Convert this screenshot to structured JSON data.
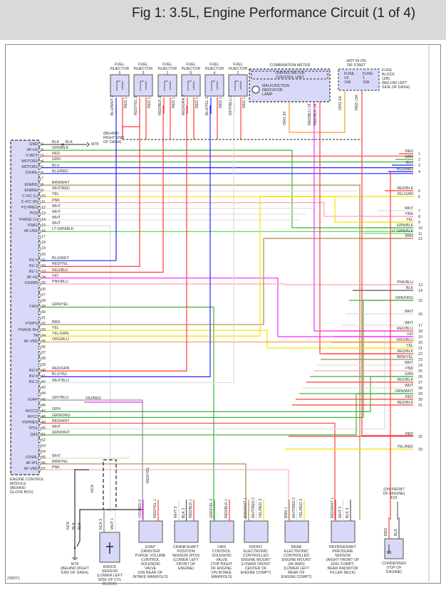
{
  "title": "Fig 1: 3.5L, Engine Performance Circuit (1 of 4)",
  "footer_id": "236071",
  "colors": {
    "RED": "#ff3b3b",
    "GRN": "#3cb43c",
    "BLU": "#2424ff",
    "BLK": "#555555",
    "BRN": "#a88a48",
    "WHT": "#dddddd",
    "YEL": "#f2e400",
    "PNK": "#ffa6b6",
    "VIO": "#ff26ff",
    "ORG": "#ff9a30",
    "GRY": "#8a8aa8",
    "LTGRN": "#5ee05e",
    "module_fill": "#d8d8f8"
  },
  "ecm": {
    "name": "ENGINE CONTROL\nMODULE\n(BEHIND\nGLOVE BOX)",
    "ground_note": "(BEHIND\nRIGHT END\nOF DASH)",
    "ground_ref": "M78",
    "ground_wire2": "BLK",
    "evap_splice_wire": "VIO/RED",
    "pins": [
      {
        "pin": "1",
        "signal": "GND",
        "wire": "BLK"
      },
      {
        "pin": "2",
        "signal": "AF-H1",
        "wire": "GRN/BLK"
      },
      {
        "pin": "3",
        "signal": "V MOT",
        "wire": "RED"
      },
      {
        "pin": "4",
        "signal": "MOTOR2",
        "wire": "GRN"
      },
      {
        "pin": "5",
        "signal": "MOTOR1",
        "wire": "BLU"
      },
      {
        "pin": "6",
        "signal": "O2HRL",
        "wire": "BLU/RED"
      },
      {
        "pin": "7",
        "signal": "",
        "wire": ""
      },
      {
        "pin": "8",
        "signal": "ENMN1",
        "wire": "BRN/WHT"
      },
      {
        "pin": "9",
        "signal": "ENMN2",
        "wire": "WHT/RED"
      },
      {
        "pin": "10",
        "signal": "C-IVC (L)",
        "wire": "YEL"
      },
      {
        "pin": "11",
        "signal": "C-IVC (R)",
        "wire": "PNK"
      },
      {
        "pin": "12",
        "signal": "PS PRES",
        "wire": "WHT"
      },
      {
        "pin": "13",
        "signal": "POS",
        "wire": "WHT"
      },
      {
        "pin": "14",
        "signal": "PHASE LH",
        "wire": "WHT"
      },
      {
        "pin": "15",
        "signal": "KNK1",
        "wire": "WHT"
      },
      {
        "pin": "16",
        "signal": "AF-UN1",
        "wire": "LT GRN/BLK"
      },
      {
        "pin": "17",
        "signal": "",
        "wire": ""
      },
      {
        "pin": "18",
        "signal": "",
        "wire": ""
      },
      {
        "pin": "19",
        "signal": "",
        "wire": ""
      },
      {
        "pin": "20",
        "signal": "",
        "wire": ""
      },
      {
        "pin": "21",
        "signal": "INJ 5",
        "wire": "BLU/WHT"
      },
      {
        "pin": "22",
        "signal": "INJ 3",
        "wire": "RED/YEL"
      },
      {
        "pin": "23",
        "signal": "INJ 1",
        "wire": "RED/BLK"
      },
      {
        "pin": "24",
        "signal": "AF-H2",
        "wire": "VIO"
      },
      {
        "pin": "25",
        "signal": "O2HRR",
        "wire": "PNK/BLU"
      },
      {
        "pin": "26",
        "signal": "",
        "wire": ""
      },
      {
        "pin": "27",
        "signal": "",
        "wire": ""
      },
      {
        "pin": "28",
        "signal": "",
        "wire": ""
      },
      {
        "pin": "29",
        "signal": "VIAS",
        "wire": "GRN/YEL"
      },
      {
        "pin": "30",
        "signal": "",
        "wire": ""
      },
      {
        "pin": "31",
        "signal": "",
        "wire": ""
      },
      {
        "pin": "32",
        "signal": "FTRPS",
        "wire": "BRN"
      },
      {
        "pin": "33",
        "signal": "PHASE RH",
        "wire": "YEL"
      },
      {
        "pin": "34",
        "signal": "TA",
        "wire": "YEL/GRN"
      },
      {
        "pin": "35",
        "signal": "AF-VM1",
        "wire": "ORG/BLU"
      },
      {
        "pin": "36",
        "signal": "",
        "wire": ""
      },
      {
        "pin": "37",
        "signal": "",
        "wire": ""
      },
      {
        "pin": "38",
        "signal": "",
        "wire": ""
      },
      {
        "pin": "39",
        "signal": "",
        "wire": ""
      },
      {
        "pin": "40",
        "signal": "INJ 6",
        "wire": "RED/GRN"
      },
      {
        "pin": "41",
        "signal": "INJ 4",
        "wire": "BLU/YEL"
      },
      {
        "pin": "42",
        "signal": "INJ 2",
        "wire": "WHT/BLU"
      },
      {
        "pin": "43",
        "signal": "",
        "wire": ""
      },
      {
        "pin": "44",
        "signal": "",
        "wire": ""
      },
      {
        "pin": "45",
        "signal": "EVAP",
        "wire": "GRY/BLU"
      },
      {
        "pin": "46",
        "signal": "",
        "wire": ""
      },
      {
        "pin": "47",
        "signal": "AVCC2",
        "wire": "GRN"
      },
      {
        "pin": "48",
        "signal": "AVCC",
        "wire": "GRN/ORG"
      },
      {
        "pin": "49",
        "signal": "PDPRES",
        "wire": "RED/WHT"
      },
      {
        "pin": "50",
        "signal": "TPS1",
        "wire": "WHT"
      },
      {
        "pin": "51",
        "signal": "QA1",
        "wire": "GRN/WHT"
      },
      {
        "pin": "52",
        "signal": "",
        "wire": ""
      },
      {
        "pin": "53",
        "signal": "",
        "wire": ""
      },
      {
        "pin": "54",
        "signal": "",
        "wire": ""
      },
      {
        "pin": "55",
        "signal": "O2SRL",
        "wire": "WHT"
      },
      {
        "pin": "56",
        "signal": "AF-IP1",
        "wire": "BRN/YEL"
      },
      {
        "pin": "57",
        "signal": "AF-VM2",
        "wire": "PNK"
      }
    ]
  },
  "right_connector": [
    {
      "pin": "1",
      "wire": "RED"
    },
    {
      "pin": "2",
      "wire": "GRN"
    },
    {
      "pin": "3",
      "wire": "BLU"
    },
    {
      "pin": "4",
      "wire": "BLU/RED"
    },
    {
      "pin": "5",
      "wire": "RED/BLK"
    },
    {
      "pin": "6",
      "wire": "YEL/GRN"
    },
    {
      "pin": "7",
      "wire": "WHT"
    },
    {
      "pin": "8",
      "wire": "PNK"
    },
    {
      "pin": "9",
      "wire": "YEL"
    },
    {
      "pin": "10",
      "wire": "GRN/BLK"
    },
    {
      "pin": "11",
      "wire": "LT GRN/BLK"
    },
    {
      "pin": "12",
      "wire": "BRN"
    },
    {
      "pin": "13",
      "wire": "PNK/BLU"
    },
    {
      "pin": "14",
      "wire": "BLK"
    },
    {
      "pin": "15",
      "wire": "GRN/ORG"
    },
    {
      "pin": "16",
      "wire": "WHT"
    },
    {
      "pin": "17",
      "wire": "WHT"
    },
    {
      "pin": "18",
      "wire": "RED/BLU"
    },
    {
      "pin": "19",
      "wire": "VIO"
    },
    {
      "pin": "20",
      "wire": "ORG/BLU"
    },
    {
      "pin": "21",
      "wire": "YEL"
    },
    {
      "pin": "22",
      "wire": "RED/BLK"
    },
    {
      "pin": "23",
      "wire": "BRN/YEL"
    },
    {
      "pin": "24",
      "wire": "WHT"
    },
    {
      "pin": "25",
      "wire": "PNK"
    },
    {
      "pin": "26",
      "wire": "GRN"
    },
    {
      "pin": "27",
      "wire": "RED/BLK"
    },
    {
      "pin": "28",
      "wire": "WHT"
    },
    {
      "pin": "29",
      "wire": "GRN/WHT"
    },
    {
      "pin": "30",
      "wire": "RED"
    },
    {
      "pin": "31",
      "wire": "RED/BLK"
    },
    {
      "pin": "32",
      "wire": "RED"
    },
    {
      "pin": "33",
      "wire": "YEL/RED"
    }
  ],
  "injectors": [
    {
      "label": "FUEL\nINJECTOR\n5",
      "wire_a": "BLU/WHT 2",
      "wire_b": "RED 1"
    },
    {
      "label": "FUEL\nINJECTOR\n3",
      "wire_a": "RED/YEL 2",
      "wire_b": "RED 1"
    },
    {
      "label": "FUEL\nINJECTOR\n1",
      "wire_a": "RED/BLK 2",
      "wire_b": "RED 1"
    },
    {
      "label": "FUEL\nINJECTOR\n6",
      "wire_a": "RED/GRN 2",
      "wire_b": "RED 1"
    },
    {
      "label": "FUEL\nINJECTOR\n4",
      "wire_a": "BLU/YEL 2",
      "wire_b": "RED 1"
    },
    {
      "label": "FUEL\nINJECTOR\n2",
      "wire_a": "WHT/BLU 2",
      "wire_b": "RED 1"
    }
  ],
  "combination_meter": {
    "title": "COMBINATION METER",
    "unit": "UNIFIED METER\nCONTROL UNIT",
    "lamp": "MALFUNCTION\nINDICATOR\nLAMP",
    "wires": [
      "ORG 20",
      "RED/BLU 18",
      "RED/BLK 19"
    ]
  },
  "fuse_block": {
    "hot_note": "HOT IN ON\nOR START",
    "fuse_a": "FUSE\n14\n10A",
    "fuse_b": "FUSE\n1\n10A",
    "label": "FUSE\nBLOCK\n(J/B)\n(BELOW LEFT\nSIDE OF DASH)",
    "wires": [
      "ORG 5A",
      "RED 13A"
    ]
  },
  "bottom_components": [
    {
      "id": "m78",
      "label": "M78\n(BEHIND RIGHT\nEND OF DASH)",
      "wires": [
        "NCA",
        "BLK",
        "BLK"
      ]
    },
    {
      "id": "knock",
      "label": "KNOCK\nSENSOR\n(LOWER LEFT\nSIDE OF CYL\nBLOCK)",
      "wires": [
        "NCA 2",
        "WHT 1"
      ],
      "shield_label": "NCA"
    },
    {
      "id": "evap",
      "label": "EVAP\nCANISTER\nPURGE VOLUME\nCONTROL\nSOLENOID\nVALVE\n(ON REAR OF\nINTAKE MANIFOLD)",
      "wires": [
        "VIO/RED 2",
        "RED/YEL 1"
      ],
      "upper_wire": "RED/YEL"
    },
    {
      "id": "crank",
      "label": "CRANKSHAFT\nPOSITION\nSENSOR (POS)\n(LOWER LEFT\nFRONT OF\nENGINE)",
      "wires": [
        "WHT 3",
        "BLK 2",
        "RED/BLK 1"
      ]
    },
    {
      "id": "vias",
      "label": "VIAS\nCONTROL\nSOLENOID\nVALVE\n(TOP RIGHT\nOF ENGINE,\nON INTAKE\nMANIFOLD)",
      "wires": [
        "GRN/YEL 2",
        "RED/BLK 1"
      ]
    },
    {
      "id": "front-mount",
      "label": "FRONT\nELECTRONIC\nCONTROLLED\nENGINE MOUNT\n(LOWER FRONT\nCENTER OF\nENGINE COMPT)",
      "wires": [
        "BRN/WHT 1",
        "WHT/RED 2",
        "YEL/RED 3"
      ]
    },
    {
      "id": "rear-mount",
      "label": "REAR\nELECTRONIC\nCONTROLLED\nENGINE MOUNT\n(W/ AWD)\n(LOWER LEFT\nREAR OF\nENGINE COMPT)",
      "wires": [
        "BRN 1",
        "WHT/RED 2",
        "YEL/RED 3"
      ]
    },
    {
      "id": "refrigerant",
      "label": "REFRIGERANT\nPRESSURE\nSENSOR\n(RIGHT FRONT OF\nENG COMPT,\nNEAR RADIATOR\nFILLER NECK)",
      "wires": [
        "RED/WHT 1",
        "WHT 2",
        "BLK 3"
      ]
    },
    {
      "id": "condenser",
      "label": "CONDENSER\n(TOP OF\nENGINE)",
      "wires": [
        "RED",
        "BLK"
      ],
      "ground_note": "(ON FRONT\nOF ENGINE)\nF23"
    }
  ]
}
